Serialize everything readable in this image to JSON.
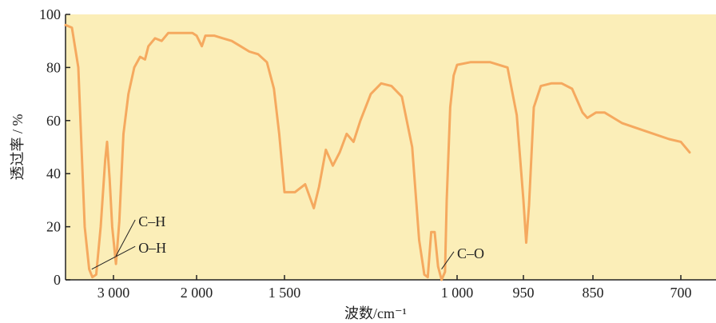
{
  "chart_data": {
    "type": "line",
    "title": "",
    "xlabel": "波数/cm⁻¹",
    "ylabel": "透过率 / %",
    "ylim": [
      0,
      100
    ],
    "yticks": [
      0,
      20,
      40,
      60,
      80,
      100
    ],
    "ytick_labels": [
      "0",
      "20",
      "40",
      "60",
      "80",
      "100"
    ],
    "x_scale": "piecewise (compressed below 1000 cm⁻¹)",
    "xticks": [
      {
        "value": 3000,
        "label": "3 000"
      },
      {
        "value": 2000,
        "label": "2 000"
      },
      {
        "value": 1500,
        "label": "1 500"
      },
      {
        "value": 1000,
        "label": "1 000"
      },
      {
        "value": 950,
        "label": "950"
      },
      {
        "value": 850,
        "label": "850"
      },
      {
        "value": 700,
        "label": "700"
      }
    ],
    "grid": false,
    "background_color": "#fbeeb8",
    "line_color": "#f5a95f",
    "series": [
      {
        "values": [
          {
            "x": 3750,
            "y": 96
          },
          {
            "x": 3650,
            "y": 95
          },
          {
            "x": 3550,
            "y": 80
          },
          {
            "x": 3450,
            "y": 20
          },
          {
            "x": 3380,
            "y": 4
          },
          {
            "x": 3330,
            "y": 1
          },
          {
            "x": 3270,
            "y": 2
          },
          {
            "x": 3200,
            "y": 20
          },
          {
            "x": 3130,
            "y": 45
          },
          {
            "x": 3100,
            "y": 52
          },
          {
            "x": 3060,
            "y": 38
          },
          {
            "x": 3020,
            "y": 20
          },
          {
            "x": 2970,
            "y": 6
          },
          {
            "x": 2930,
            "y": 22
          },
          {
            "x": 2880,
            "y": 55
          },
          {
            "x": 2820,
            "y": 70
          },
          {
            "x": 2750,
            "y": 80
          },
          {
            "x": 2680,
            "y": 84
          },
          {
            "x": 2620,
            "y": 83
          },
          {
            "x": 2580,
            "y": 88
          },
          {
            "x": 2500,
            "y": 91
          },
          {
            "x": 2420,
            "y": 90
          },
          {
            "x": 2340,
            "y": 93
          },
          {
            "x": 2250,
            "y": 93
          },
          {
            "x": 2150,
            "y": 93
          },
          {
            "x": 2050,
            "y": 93
          },
          {
            "x": 2000,
            "y": 92
          },
          {
            "x": 1970,
            "y": 88
          },
          {
            "x": 1950,
            "y": 92
          },
          {
            "x": 1900,
            "y": 92
          },
          {
            "x": 1850,
            "y": 91
          },
          {
            "x": 1800,
            "y": 90
          },
          {
            "x": 1750,
            "y": 88
          },
          {
            "x": 1700,
            "y": 86
          },
          {
            "x": 1650,
            "y": 85
          },
          {
            "x": 1600,
            "y": 82
          },
          {
            "x": 1560,
            "y": 72
          },
          {
            "x": 1530,
            "y": 55
          },
          {
            "x": 1500,
            "y": 33
          },
          {
            "x": 1470,
            "y": 33
          },
          {
            "x": 1440,
            "y": 36
          },
          {
            "x": 1415,
            "y": 27
          },
          {
            "x": 1400,
            "y": 35
          },
          {
            "x": 1380,
            "y": 49
          },
          {
            "x": 1360,
            "y": 43
          },
          {
            "x": 1340,
            "y": 48
          },
          {
            "x": 1320,
            "y": 55
          },
          {
            "x": 1300,
            "y": 52
          },
          {
            "x": 1280,
            "y": 60
          },
          {
            "x": 1250,
            "y": 70
          },
          {
            "x": 1220,
            "y": 74
          },
          {
            "x": 1190,
            "y": 73
          },
          {
            "x": 1160,
            "y": 69
          },
          {
            "x": 1130,
            "y": 50
          },
          {
            "x": 1110,
            "y": 15
          },
          {
            "x": 1095,
            "y": 2
          },
          {
            "x": 1085,
            "y": 1
          },
          {
            "x": 1075,
            "y": 18
          },
          {
            "x": 1065,
            "y": 18
          },
          {
            "x": 1055,
            "y": 5
          },
          {
            "x": 1045,
            "y": 0
          },
          {
            "x": 1035,
            "y": 3
          },
          {
            "x": 1030,
            "y": 30
          },
          {
            "x": 1020,
            "y": 65
          },
          {
            "x": 1010,
            "y": 77
          },
          {
            "x": 1000,
            "y": 81
          },
          {
            "x": 990,
            "y": 82
          },
          {
            "x": 975,
            "y": 82
          },
          {
            "x": 962,
            "y": 80
          },
          {
            "x": 955,
            "y": 62
          },
          {
            "x": 950,
            "y": 30
          },
          {
            "x": 946,
            "y": 14
          },
          {
            "x": 942,
            "y": 28
          },
          {
            "x": 935,
            "y": 65
          },
          {
            "x": 925,
            "y": 73
          },
          {
            "x": 910,
            "y": 74
          },
          {
            "x": 895,
            "y": 74
          },
          {
            "x": 880,
            "y": 72
          },
          {
            "x": 865,
            "y": 63
          },
          {
            "x": 858,
            "y": 61
          },
          {
            "x": 845,
            "y": 63
          },
          {
            "x": 830,
            "y": 63
          },
          {
            "x": 800,
            "y": 59
          },
          {
            "x": 760,
            "y": 56
          },
          {
            "x": 720,
            "y": 53
          },
          {
            "x": 700,
            "y": 52
          },
          {
            "x": 680,
            "y": 48
          }
        ]
      }
    ],
    "annotations": [
      {
        "text": "C–H",
        "x": 2970,
        "y": 9,
        "label_x": 2700,
        "label_y": 22
      },
      {
        "text": "O–H",
        "x": 3340,
        "y": 4,
        "label_x": 2700,
        "label_y": 12
      },
      {
        "text": "C–O",
        "x": 1045,
        "y": 4,
        "label_x": 1000,
        "label_y": 10
      }
    ]
  }
}
